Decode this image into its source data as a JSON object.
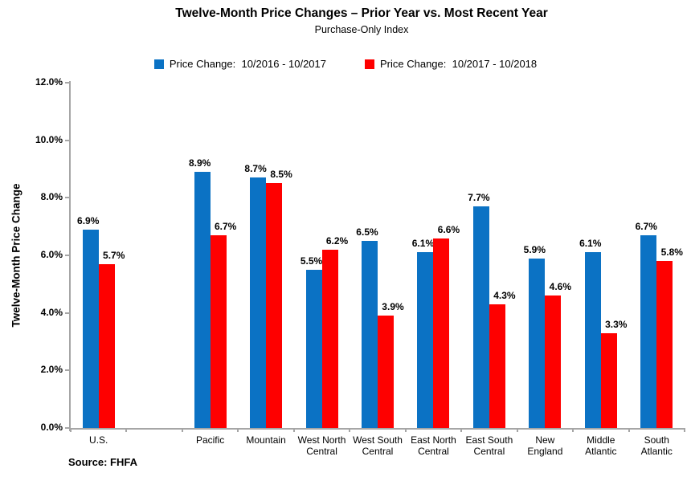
{
  "title": "Twelve-Month Price Changes – Prior Year vs. Most Recent Year",
  "subtitle": "Purchase-Only Index",
  "source_note": "Source: FHFA",
  "colors": {
    "prior_year_blue": "#0b72c4",
    "recent_year_red": "#fe0000",
    "axis_gray": "#a6a6a6"
  },
  "chart_data": {
    "type": "bar",
    "title": "Twelve-Month Price Changes – Prior Year vs. Most Recent Year",
    "subtitle": "Purchase-Only Index",
    "xlabel": "",
    "ylabel": "Twelve-Month Price Change",
    "ylim": [
      0,
      12
    ],
    "ytick_values": [
      0,
      2,
      4,
      6,
      8,
      10,
      12
    ],
    "ytick_labels": [
      "0.0%",
      "2.0%",
      "4.0%",
      "6.0%",
      "8.0%",
      "10.0%",
      "12.0%"
    ],
    "grid": false,
    "legend_position": "top",
    "gap_after_first_category": true,
    "categories": [
      "U.S.",
      "Pacific",
      "Mountain",
      "West North Central",
      "West South Central",
      "East North Central",
      "East South Central",
      "New England",
      "Middle Atlantic",
      "South Atlantic"
    ],
    "series": [
      {
        "name": "Price Change:  10/2016 - 10/2017",
        "color": "#0b72c4",
        "values": [
          6.9,
          8.9,
          8.7,
          5.5,
          6.5,
          6.1,
          7.7,
          5.9,
          6.1,
          6.7
        ],
        "labels": [
          "6.9%",
          "8.9%",
          "8.7%",
          "5.5%",
          "6.5%",
          "6.1%",
          "7.7%",
          "5.9%",
          "6.1%",
          "6.7%"
        ]
      },
      {
        "name": "Price Change:  10/2017 - 10/2018",
        "color": "#fe0000",
        "values": [
          5.7,
          6.7,
          8.5,
          6.2,
          3.9,
          6.6,
          4.3,
          4.6,
          3.3,
          5.8
        ],
        "labels": [
          "5.7%",
          "6.7%",
          "8.5%",
          "6.2%",
          "3.9%",
          "6.6%",
          "4.3%",
          "4.6%",
          "3.3%",
          "5.8%"
        ]
      }
    ]
  }
}
